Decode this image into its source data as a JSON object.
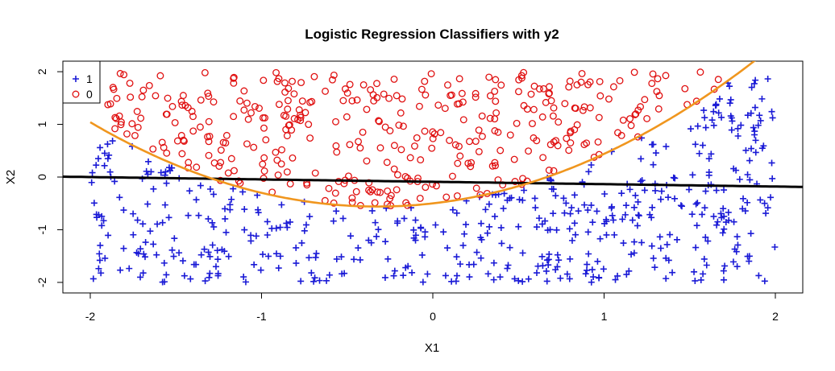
{
  "chart_data": {
    "type": "scatter",
    "title": "Logistic Regression Classifiers with y2",
    "xlabel": "X1",
    "ylabel": "X2",
    "xlim": [
      -2.16,
      2.16
    ],
    "ylim": [
      -2.2,
      2.2
    ],
    "x_ticks": [
      -2,
      -1,
      0,
      1,
      2
    ],
    "y_ticks": [
      -2,
      -1,
      0,
      1,
      2
    ],
    "grid": false,
    "legend": {
      "placement": "top-left",
      "entries": [
        {
          "label": "1",
          "marker": "plus",
          "color": "#1a1ad6"
        },
        {
          "label": "0",
          "marker": "circle",
          "color": "#e01010"
        }
      ]
    },
    "boundaries": [
      {
        "kind": "linear",
        "color": "#000000",
        "coef": [
          -0.09,
          -0.045,
          0
        ]
      },
      {
        "kind": "quadratic",
        "color": "#f0961e",
        "coef": [
          -0.5,
          0.37,
          0.57
        ]
      }
    ],
    "class_rule": "class 1 when X2 < -0.5 + 0.37*X1 + 0.57*X1^2",
    "n_points": 900,
    "series": [
      {
        "name": "1",
        "points": []
      },
      {
        "name": "0",
        "points": []
      }
    ]
  }
}
